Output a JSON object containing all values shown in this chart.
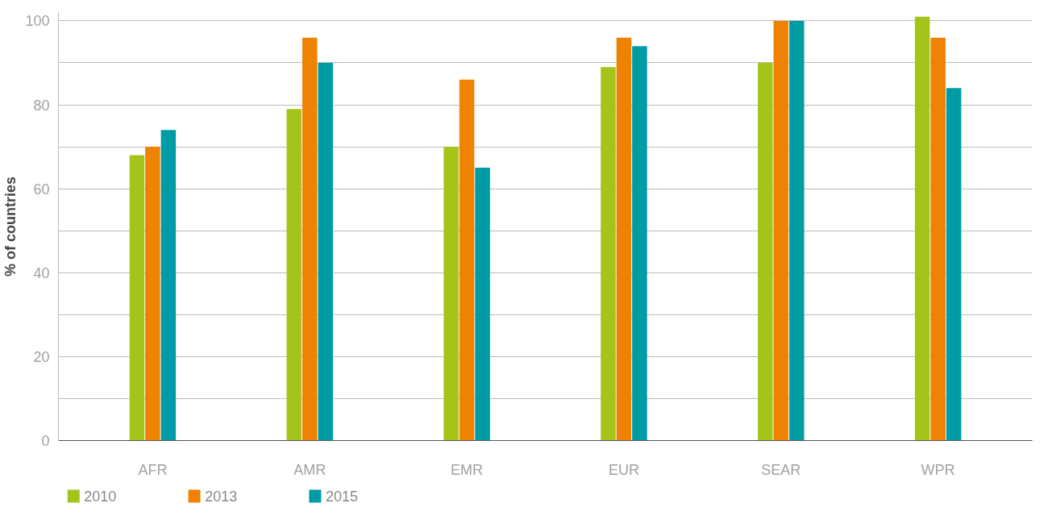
{
  "chart_data": {
    "type": "bar",
    "ylabel": "% of countries",
    "categories": [
      "AFR",
      "AMR",
      "EMR",
      "EUR",
      "SEAR",
      "WPR"
    ],
    "series": [
      {
        "name": "2010",
        "color": "#a5c41a",
        "values": [
          68,
          79,
          70,
          89,
          90,
          101
        ]
      },
      {
        "name": "2013",
        "color": "#ef8200",
        "values": [
          70,
          96,
          86,
          96,
          100,
          96
        ]
      },
      {
        "name": "2015",
        "color": "#009ca6",
        "values": [
          74,
          90,
          65,
          94,
          100,
          84
        ]
      }
    ],
    "ylim": [
      0,
      102
    ],
    "yticks": [
      0,
      {
        "value": 10,
        "label": null
      },
      20,
      {
        "value": 30,
        "label": null
      },
      40,
      {
        "value": 50,
        "label": null
      },
      60,
      {
        "value": 70,
        "label": null
      },
      80,
      {
        "value": 90,
        "label": null
      },
      100
    ],
    "grid": "y",
    "legend": "bottom left"
  }
}
